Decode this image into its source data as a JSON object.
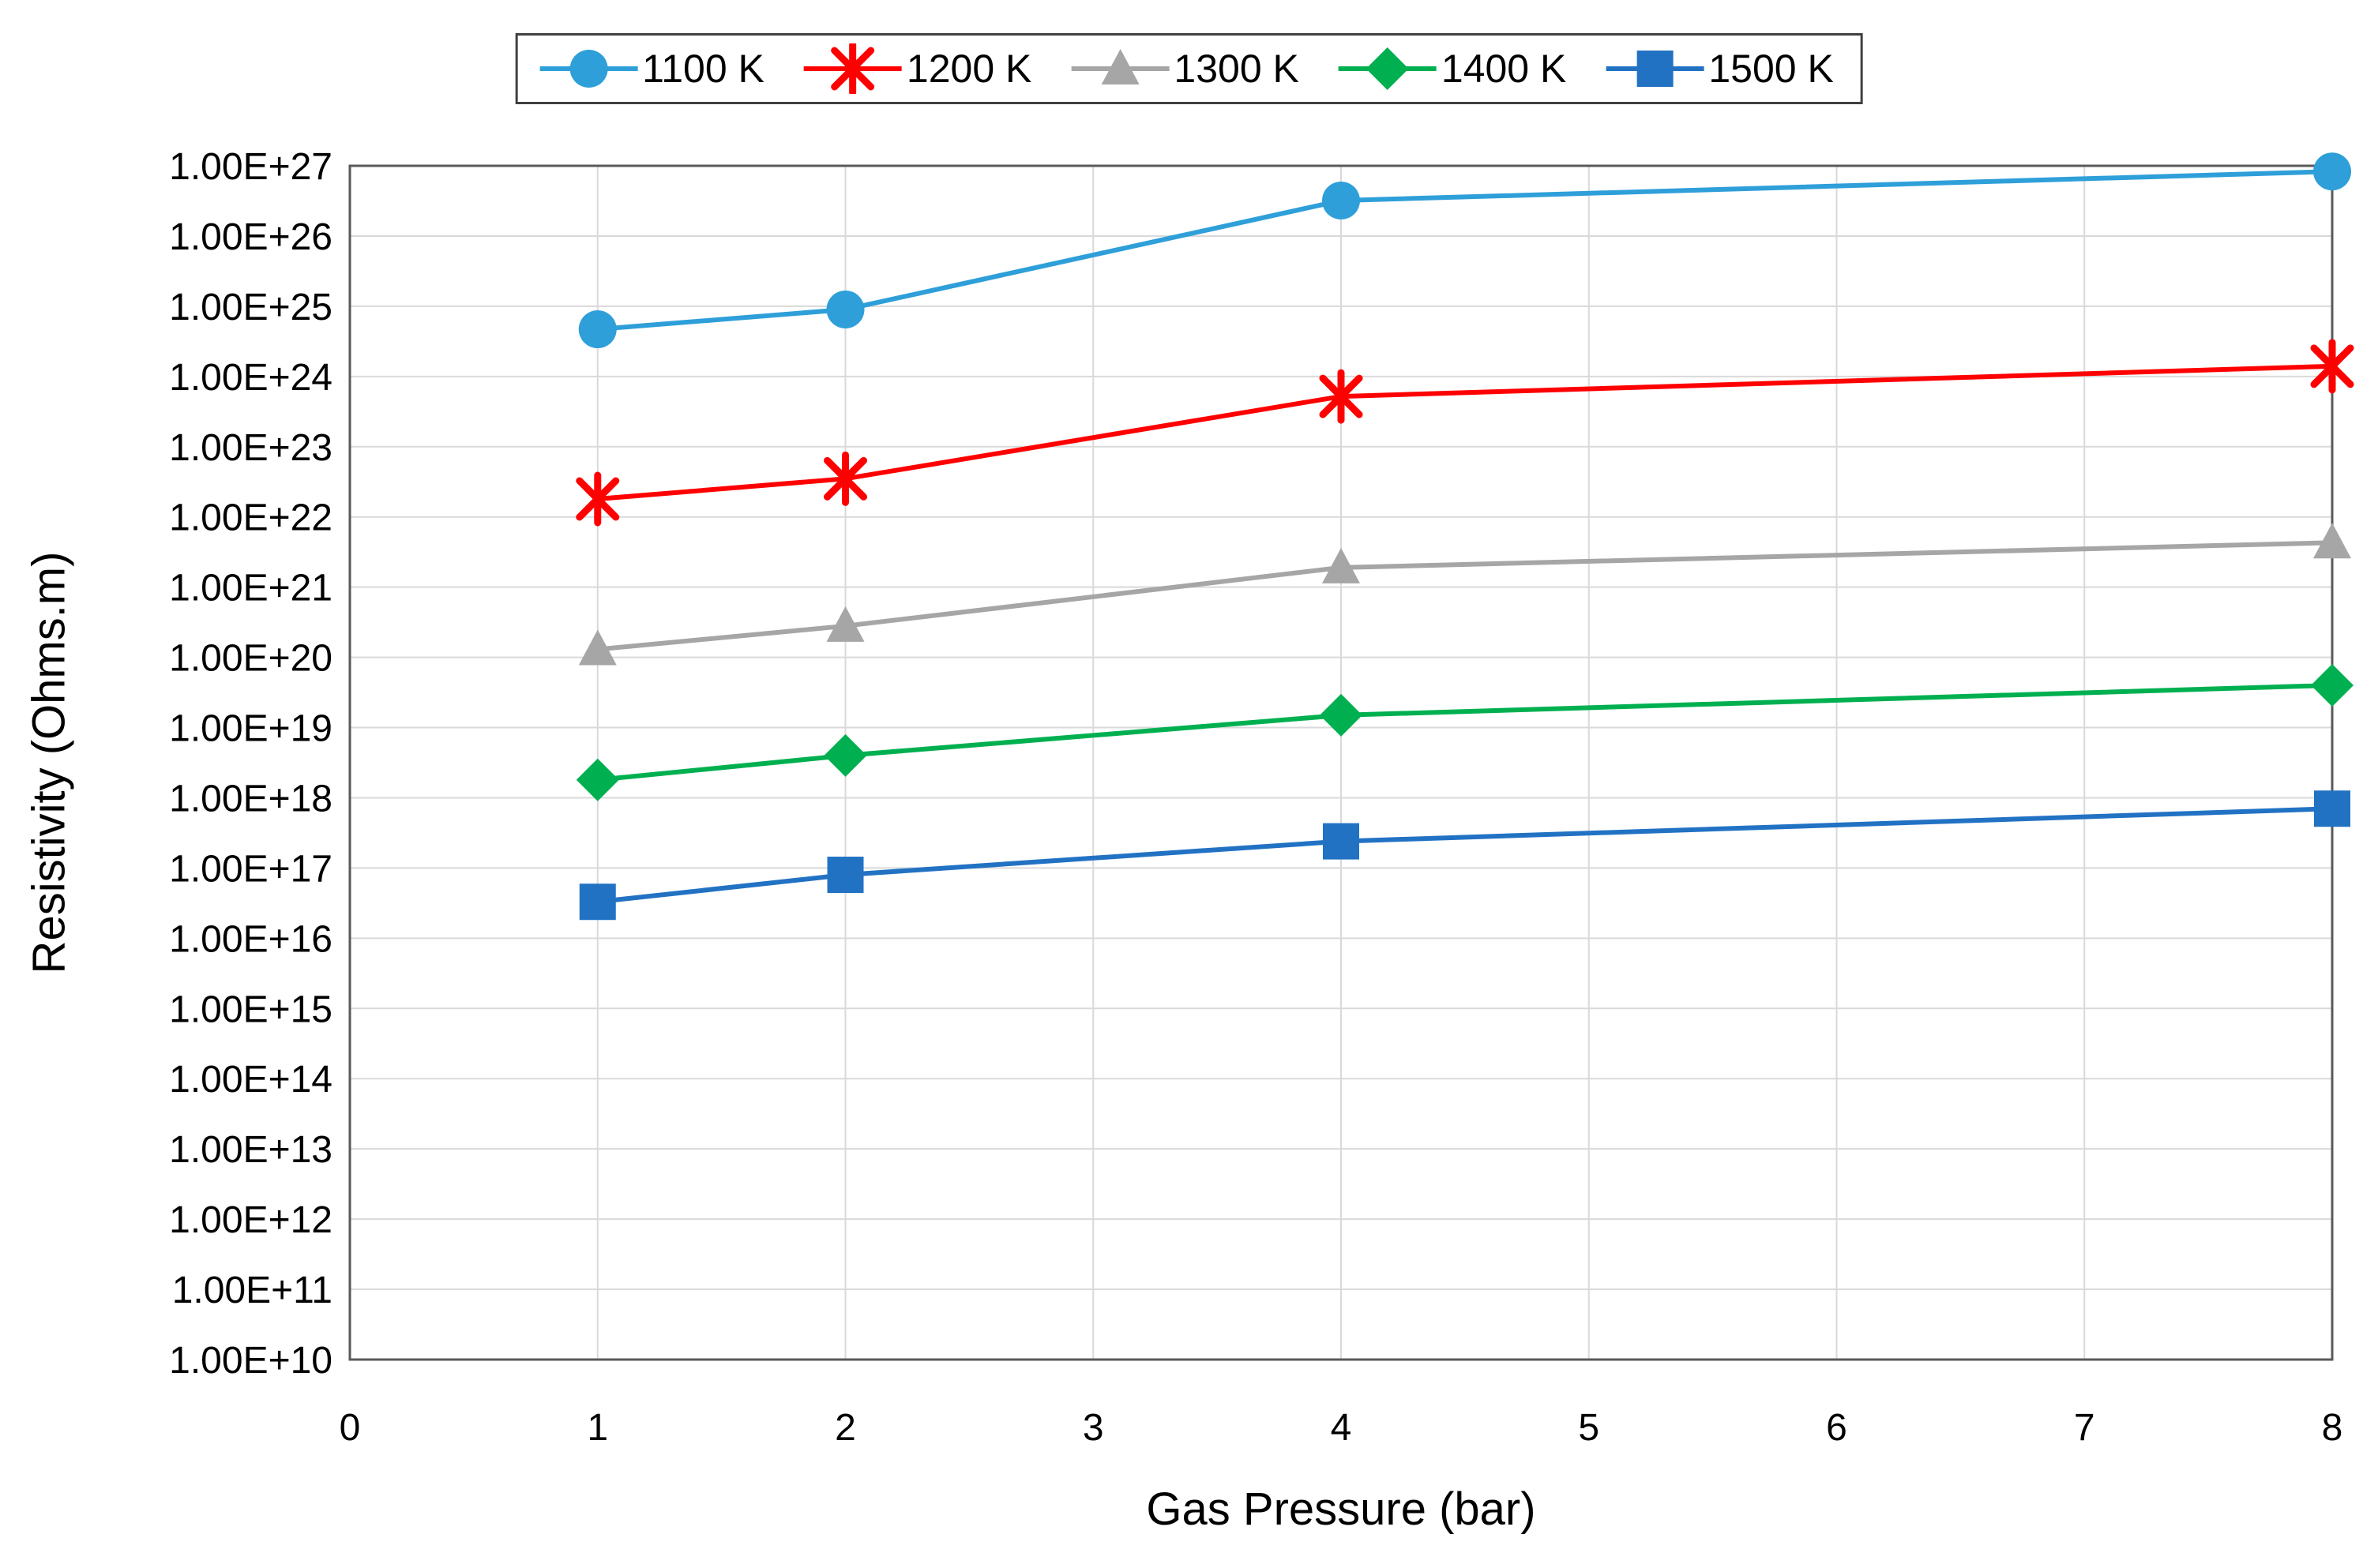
{
  "chart_data": {
    "type": "line",
    "title": "",
    "xlabel": "Gas Pressure (bar)",
    "ylabel": "Resistivity (Ohms.m)",
    "x": [
      1,
      2,
      4,
      8
    ],
    "series": [
      {
        "name": "1100 K",
        "marker": "circle",
        "color": "#2E9FD9",
        "values": [
          4.7e+24,
          9e+24,
          3.2e+26,
          8.3e+26
        ]
      },
      {
        "name": "1200 K",
        "marker": "asterisk",
        "color": "#FF0000",
        "values": [
          1.8e+22,
          3.5e+22,
          5.2e+23,
          1.4e+24
        ]
      },
      {
        "name": "1300 K",
        "marker": "triangle",
        "color": "#A6A6A6",
        "values": [
          1.3e+20,
          2.8e+20,
          1.9e+21,
          4.3e+21
        ]
      },
      {
        "name": "1400 K",
        "marker": "diamond",
        "color": "#00B050",
        "values": [
          1.8e+18,
          4e+18,
          1.5e+19,
          4e+19
        ]
      },
      {
        "name": "1500 K",
        "marker": "square",
        "color": "#2272C4",
        "values": [
          3.3e+16,
          8e+16,
          2.4e+17,
          7e+17
        ]
      }
    ],
    "x_tick_labels": [
      "0",
      "1",
      "2",
      "3",
      "4",
      "5",
      "6",
      "7",
      "8"
    ],
    "y_tick_labels": [
      "1.00E+27",
      "1.00E+26",
      "1.00E+25",
      "1.00E+24",
      "1.00E+23",
      "1.00E+22",
      "1.00E+21",
      "1.00E+20",
      "1.00E+19",
      "1.00E+18",
      "1.00E+17",
      "1.00E+16",
      "1.00E+15",
      "1.00E+14",
      "1.00E+13",
      "1.00E+12",
      "1.00E+11",
      "1.00E+10"
    ],
    "xlim": [
      0,
      8
    ],
    "y_scale": "log10",
    "y_exponent_range": [
      10,
      27
    ],
    "grid": true,
    "legend_position": "top-center",
    "style": {
      "gridline_color": "#D9D9D9",
      "plot_border_color": "#595959",
      "text_color": "#000000"
    }
  }
}
